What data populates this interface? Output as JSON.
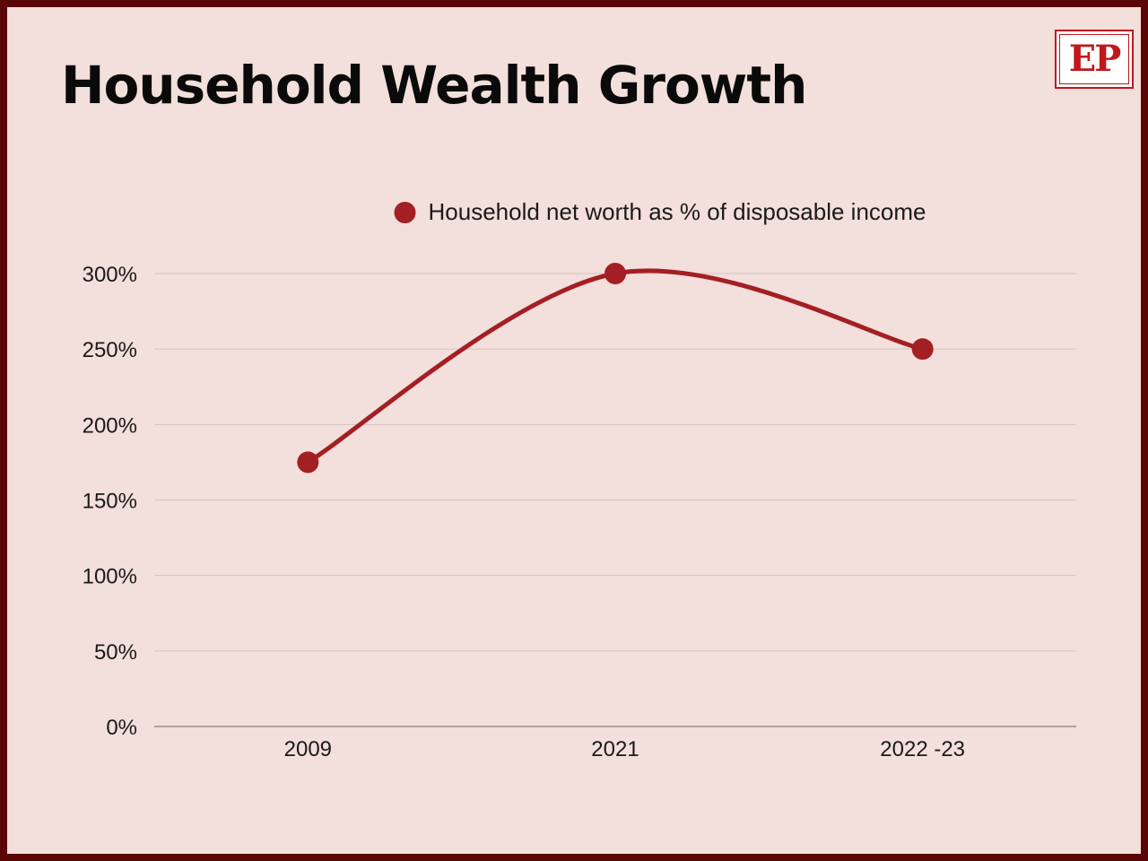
{
  "header": {
    "title": "Household Wealth Growth",
    "logo_text": "EP"
  },
  "colors": {
    "background": "#f3dfdb",
    "border": "#5a0606",
    "series": "#a31f24",
    "gridline": "#d2c4c1",
    "axis": "#9a8d8a",
    "logo": "#c0181c"
  },
  "chart_data": {
    "type": "line",
    "title": "Household Wealth Growth",
    "categories": [
      "2009",
      "2021",
      "2022 -23"
    ],
    "series": [
      {
        "name": "Household net worth as % of disposable income",
        "values": [
          175,
          300,
          250
        ]
      }
    ],
    "yticks": [
      "0%",
      "50%",
      "100%",
      "150%",
      "200%",
      "250%",
      "300%"
    ],
    "ytick_values": [
      0,
      50,
      100,
      150,
      200,
      250,
      300
    ],
    "ylim": [
      0,
      300
    ],
    "xlabel": "",
    "ylabel": "",
    "grid": true,
    "smooth": true,
    "legend_position": "top-center"
  }
}
